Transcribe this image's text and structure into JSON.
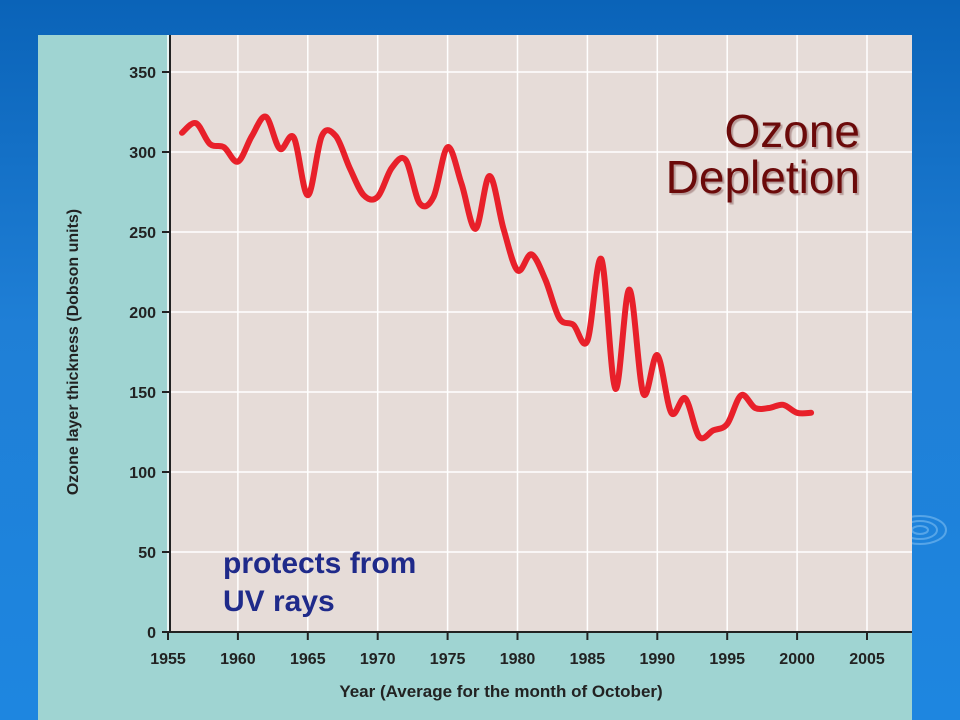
{
  "slide": {
    "title_line1": "Ozone",
    "title_line2": "Depletion",
    "caption_line1": "protects from",
    "caption_line2": "UV rays",
    "colors": {
      "title": "#6b0a0a",
      "caption": "#1f2a8a",
      "line": "#e8202a",
      "plot_bg": "#e6dcd8",
      "panel_bg": "#9fd4d2"
    }
  },
  "chart_data": {
    "type": "line",
    "title": "",
    "xlabel": "Year (Average for the month of October)",
    "ylabel": "Ozone layer thickness (Dobson units)",
    "xlim": [
      1955,
      2008
    ],
    "ylim": [
      0,
      350
    ],
    "xticks": [
      1955,
      1960,
      1965,
      1970,
      1975,
      1980,
      1985,
      1990,
      1995,
      2000,
      2005
    ],
    "yticks": [
      0,
      50,
      100,
      150,
      200,
      250,
      300,
      350
    ],
    "grid": true,
    "series": [
      {
        "color": "#e8202a",
        "x": [
          1956,
          1957,
          1958,
          1959,
          1960,
          1961,
          1962,
          1963,
          1964,
          1965,
          1966,
          1967,
          1968,
          1969,
          1970,
          1971,
          1972,
          1973,
          1974,
          1975,
          1976,
          1977,
          1978,
          1979,
          1980,
          1981,
          1982,
          1983,
          1984,
          1985,
          1986,
          1987,
          1988,
          1989,
          1990,
          1991,
          1992,
          1993,
          1994,
          1995,
          1996,
          1997,
          1998,
          1999,
          2000,
          2001
        ],
        "y": [
          312,
          318,
          305,
          303,
          294,
          310,
          322,
          302,
          309,
          273,
          310,
          310,
          290,
          273,
          272,
          290,
          295,
          268,
          272,
          303,
          280,
          252,
          285,
          252,
          226,
          236,
          220,
          196,
          192,
          182,
          233,
          152,
          214,
          149,
          173,
          137,
          146,
          122,
          126,
          130,
          148,
          140,
          140,
          142,
          137,
          137
        ]
      }
    ]
  }
}
